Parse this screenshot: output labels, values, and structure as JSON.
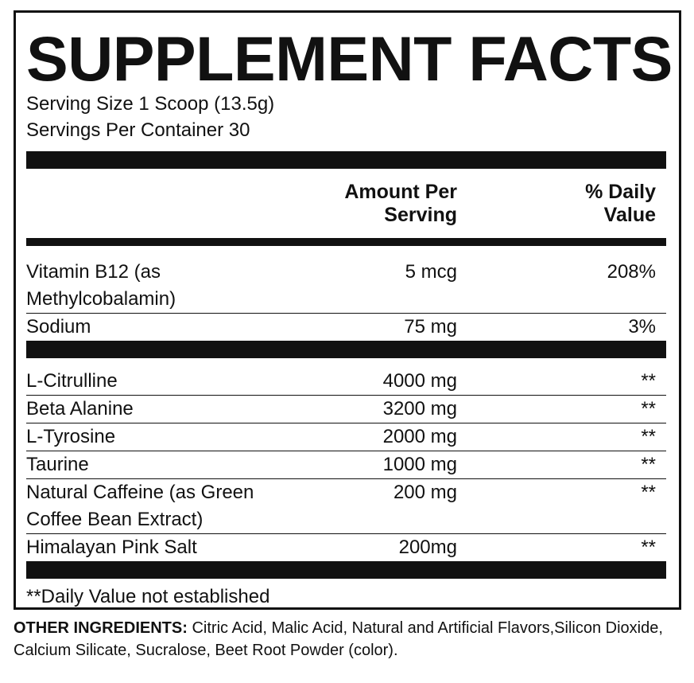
{
  "title": "SUPPLEMENT FACTS",
  "serving_size": "Serving Size 1 Scoop (13.5g)",
  "servings_per_container": "Servings Per Container 30",
  "table": {
    "header": [
      "Amount Per Serving",
      "% Daily Value"
    ],
    "sections": [
      {
        "rows": [
          [
            "Vitamin B12 (as Methylcobalamin)",
            "5 mcg",
            "208%"
          ],
          [
            "Sodium",
            "75 mg",
            "3%"
          ]
        ]
      },
      {
        "rows": [
          [
            "L-Citrulline",
            "4000 mg",
            "**"
          ],
          [
            "Beta Alanine",
            "3200 mg",
            "**"
          ],
          [
            "L-Tyrosine",
            "2000 mg",
            "**"
          ],
          [
            "Taurine",
            "1000 mg",
            "**"
          ],
          [
            "Natural Caffeine (as Green Coffee Bean Extract)",
            "200 mg",
            "**"
          ],
          [
            "Himalayan Pink Salt",
            "200mg",
            "**"
          ]
        ]
      }
    ]
  },
  "footnote": "**Daily Value not established",
  "other_ingredients": {
    "label": "OTHER INGREDIENTS:",
    "text": "Citric Acid, Malic Acid, Natural and Artificial Flavors,Silicon Dioxide, Calcium Silicate, Sucralose, Beet Root Powder (color)."
  }
}
